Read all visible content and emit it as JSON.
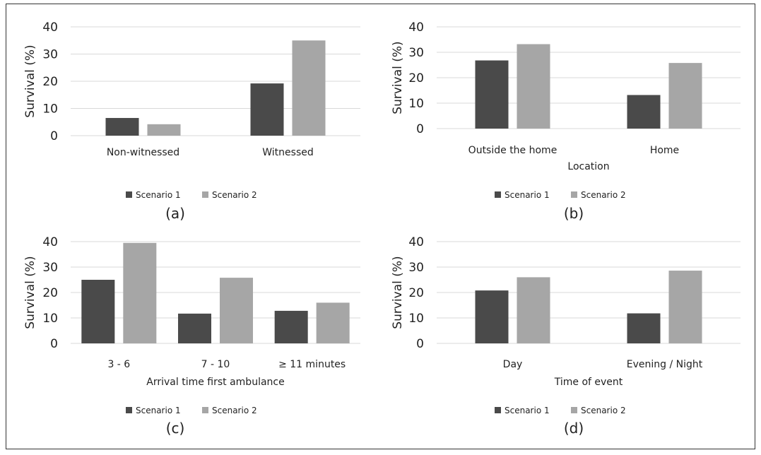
{
  "figure": {
    "colors": {
      "scenario1": "#4a4a4a",
      "scenario2": "#a6a6a6",
      "grid": "#d9d9d9"
    }
  },
  "chart_data": [
    {
      "type": "bar",
      "panel_label": "(a)",
      "categories": [
        "Non-witnessed",
        "Witnessed"
      ],
      "series": [
        {
          "name": "Scenario 1",
          "values": [
            6.5,
            19.2
          ]
        },
        {
          "name": "Scenario 2",
          "values": [
            4.2,
            35.0
          ]
        }
      ],
      "title": "",
      "xlabel": "",
      "ylabel": "Survival (%)",
      "ylim": [
        0,
        40
      ],
      "yticks": [
        0,
        10,
        20,
        30,
        40
      ],
      "grid": true,
      "legend": "bottom"
    },
    {
      "type": "bar",
      "panel_label": "(b)",
      "categories": [
        "Outside the home",
        "Home"
      ],
      "series": [
        {
          "name": "Scenario 1",
          "values": [
            26.8,
            13.2
          ]
        },
        {
          "name": "Scenario 2",
          "values": [
            33.2,
            25.8
          ]
        }
      ],
      "title": "",
      "xlabel": "Location",
      "ylabel": "Survival (%)",
      "ylim": [
        0,
        40
      ],
      "yticks": [
        0,
        10,
        20,
        30,
        40
      ],
      "grid": true,
      "legend": "bottom"
    },
    {
      "type": "bar",
      "panel_label": "(c)",
      "categories": [
        "3 - 6",
        "7 - 10",
        "≥ 11 minutes"
      ],
      "series": [
        {
          "name": "Scenario 1",
          "values": [
            25.0,
            11.7,
            12.8
          ]
        },
        {
          "name": "Scenario 2",
          "values": [
            39.5,
            25.8,
            16.0
          ]
        }
      ],
      "title": "",
      "xlabel": "Arrival time first ambulance",
      "ylabel": "Survival (%)",
      "ylim": [
        0,
        40
      ],
      "yticks": [
        0,
        10,
        20,
        30,
        40
      ],
      "grid": true,
      "legend": "bottom"
    },
    {
      "type": "bar",
      "panel_label": "(d)",
      "categories": [
        "Day",
        "Evening / Night"
      ],
      "series": [
        {
          "name": "Scenario 1",
          "values": [
            20.8,
            11.8
          ]
        },
        {
          "name": "Scenario 2",
          "values": [
            26.0,
            28.6
          ]
        }
      ],
      "title": "",
      "xlabel": "Time of event",
      "ylabel": "Survival (%)",
      "ylim": [
        0,
        40
      ],
      "yticks": [
        0,
        10,
        20,
        30,
        40
      ],
      "grid": true,
      "legend": "bottom"
    }
  ]
}
